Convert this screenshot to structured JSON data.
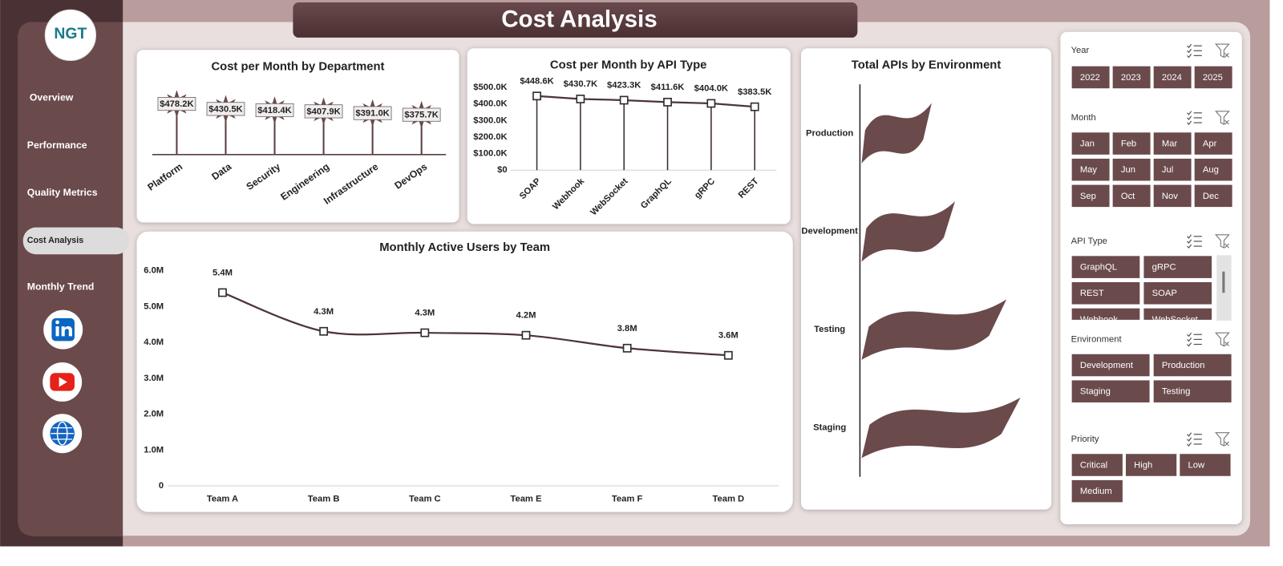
{
  "header": {
    "title": "Cost Analysis",
    "logo": "NGT"
  },
  "nav": {
    "items": [
      "Overview",
      "Performance",
      "Quality Metrics",
      "Cost Analysis",
      "Monthly Trend"
    ],
    "active": 3
  },
  "chart_data": [
    {
      "type": "lollipop",
      "title": "Cost per Month by Department",
      "categories": [
        "Platform",
        "Data",
        "Security",
        "Engineering",
        "Infrastructure",
        "DevOps"
      ],
      "values": [
        478200,
        430500,
        418400,
        407900,
        391000,
        375700
      ],
      "value_labels": [
        "$478.2K",
        "$430.5K",
        "$418.4K",
        "$407.9K",
        "$391.0K",
        "$375.7K"
      ],
      "color": "#6b4a4c",
      "marker": "star"
    },
    {
      "type": "line",
      "title": "Cost per Month by API Type",
      "categories": [
        "SOAP",
        "Webhook",
        "WebSocket",
        "GraphQL",
        "gRPC",
        "REST"
      ],
      "values": [
        448600,
        430700,
        423300,
        411600,
        404000,
        383500
      ],
      "value_labels": [
        "$448.6K",
        "$430.7K",
        "$423.3K",
        "$411.6K",
        "$404.0K",
        "$383.5K"
      ],
      "ylim": [
        0,
        500000
      ],
      "yticks": [
        {
          "value": 0,
          "label": "$0"
        },
        {
          "value": 100000,
          "label": "$100.0K"
        },
        {
          "value": 200000,
          "label": "$200.0K"
        },
        {
          "value": 300000,
          "label": "$300.0K"
        },
        {
          "value": 400000,
          "label": "$400.0K"
        },
        {
          "value": 500000,
          "label": "$500.0K"
        }
      ],
      "color": "#4e3436",
      "droplines": true,
      "marker": "square"
    },
    {
      "type": "line",
      "title": "Monthly Active Users by Team",
      "categories": [
        "Team A",
        "Team B",
        "Team C",
        "Team E",
        "Team F",
        "Team D"
      ],
      "values": [
        5390000,
        4310000,
        4270000,
        4200000,
        3840000,
        3640000
      ],
      "value_labels": [
        "5.4M",
        "4.3M",
        "4.3M",
        "4.2M",
        "3.8M",
        "3.6M"
      ],
      "ylim": [
        0,
        6000000
      ],
      "yticks": [
        0,
        {
          "value": 1000000,
          "label": "1.0M"
        },
        {
          "value": 2000000,
          "label": "2.0M"
        },
        {
          "value": 3000000,
          "label": "3.0M"
        },
        {
          "value": 4000000,
          "label": "4.0M"
        },
        {
          "value": 5000000,
          "label": "5.0M"
        },
        {
          "value": 6000000,
          "label": "6.0M"
        }
      ],
      "color": "#4e3436",
      "smooth": true,
      "marker": "square"
    },
    {
      "type": "hbar",
      "title": "Total APIs by Environment",
      "categories": [
        "Production",
        "Development",
        "Testing",
        "Staging"
      ],
      "values": [
        115,
        120,
        131,
        134
      ],
      "xlim": [
        100,
        135
      ],
      "color": "#6b4a4c",
      "shape": "flag"
    }
  ],
  "slicers": [
    {
      "title": "Year",
      "items": [
        "2022",
        "2023",
        "2024",
        "2025"
      ]
    },
    {
      "title": "Month",
      "items": [
        "Jan",
        "Feb",
        "Mar",
        "Apr",
        "May",
        "Jun",
        "Jul",
        "Aug",
        "Sep",
        "Oct",
        "Nov",
        "Dec"
      ]
    },
    {
      "title": "API Type",
      "items": [
        "GraphQL",
        "gRPC",
        "REST",
        "SOAP",
        "Webhook",
        "WebSocket"
      ]
    },
    {
      "title": "Environment",
      "items": [
        "Development",
        "Production",
        "Staging",
        "Testing"
      ]
    },
    {
      "title": "Priority",
      "items": [
        "Critical",
        "High",
        "Low",
        "Medium"
      ]
    }
  ]
}
